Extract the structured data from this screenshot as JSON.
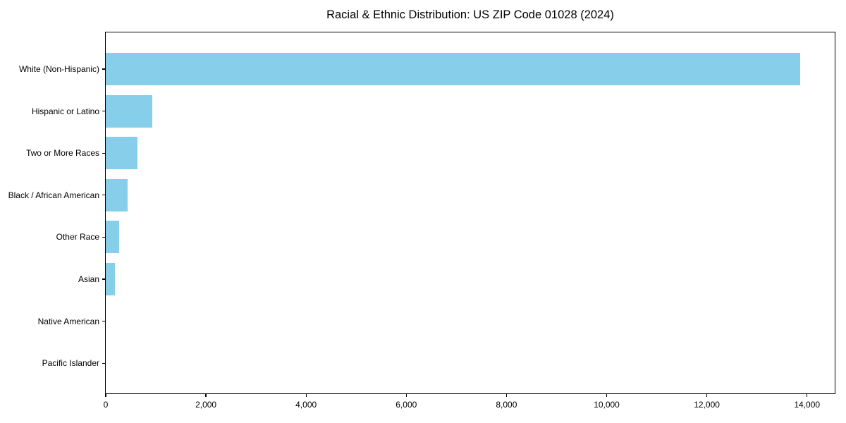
{
  "chart_data": {
    "type": "bar",
    "orientation": "horizontal",
    "title": "Racial & Ethnic Distribution: US ZIP Code 01028 (2024)",
    "categories": [
      "White (Non-Hispanic)",
      "Hispanic or Latino",
      "Two or More Races",
      "Black / African American",
      "Other Race",
      "Asian",
      "Native American",
      "Pacific Islander"
    ],
    "values": [
      13860,
      925,
      635,
      440,
      265,
      180,
      0,
      0
    ],
    "xlabel": "",
    "ylabel": "",
    "xlim": [
      0,
      14553
    ],
    "x_ticks": [
      0,
      2000,
      4000,
      6000,
      8000,
      10000,
      12000,
      14000
    ],
    "x_tick_labels": [
      "0",
      "2,000",
      "4,000",
      "6,000",
      "8,000",
      "10,000",
      "12,000",
      "14,000"
    ],
    "bar_color": "#87CEEB",
    "grid": false,
    "legend": "none",
    "plot_background": "#ffffff",
    "spine_color": "#000000"
  }
}
